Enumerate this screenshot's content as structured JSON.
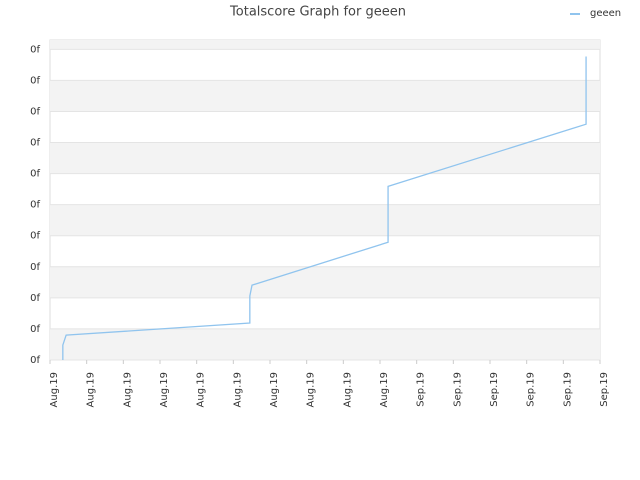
{
  "chart_data": {
    "type": "line",
    "title": "Totalscore Graph for geeen",
    "series": [
      {
        "name": "geeen",
        "color": "#90c4ee",
        "x": [
          0.35,
          0.35,
          0.44,
          5.45,
          5.45,
          5.51,
          9.22,
          9.22,
          14.62,
          14.62
        ],
        "values": [
          0,
          0.48,
          0.8,
          1.19,
          2.06,
          2.41,
          3.79,
          5.59,
          7.59,
          9.77
        ]
      }
    ],
    "xlim": [
      0,
      15
    ],
    "xticks": [
      {
        "value": 0,
        "label": "Aug.19"
      },
      {
        "value": 1,
        "label": "Aug.19"
      },
      {
        "value": 2,
        "label": "Aug.19"
      },
      {
        "value": 3,
        "label": "Aug.19"
      },
      {
        "value": 4,
        "label": "Aug.19"
      },
      {
        "value": 5,
        "label": "Aug.19"
      },
      {
        "value": 6,
        "label": "Aug.19"
      },
      {
        "value": 7,
        "label": "Aug.19"
      },
      {
        "value": 8,
        "label": "Aug.19"
      },
      {
        "value": 9,
        "label": "Aug.19"
      },
      {
        "value": 10,
        "label": "Sep.19"
      },
      {
        "value": 11,
        "label": "Sep.19"
      },
      {
        "value": 12,
        "label": "Sep.19"
      },
      {
        "value": 13,
        "label": "Sep.19"
      },
      {
        "value": 14,
        "label": "Sep.19"
      },
      {
        "value": 15,
        "label": "Sep.19"
      }
    ],
    "ylim": [
      0,
      10.3
    ],
    "yticks": [
      {
        "value": 0,
        "label": "0f"
      },
      {
        "value": 1,
        "label": "0f"
      },
      {
        "value": 2,
        "label": "0f"
      },
      {
        "value": 3,
        "label": "0f"
      },
      {
        "value": 4,
        "label": "0f"
      },
      {
        "value": 5,
        "label": "0f"
      },
      {
        "value": 6,
        "label": "0f"
      },
      {
        "value": 7,
        "label": "0f"
      },
      {
        "value": 8,
        "label": "0f"
      },
      {
        "value": 9,
        "label": "0f"
      },
      {
        "value": 10,
        "label": "0f"
      }
    ],
    "grid": true,
    "legend": "top-right"
  }
}
